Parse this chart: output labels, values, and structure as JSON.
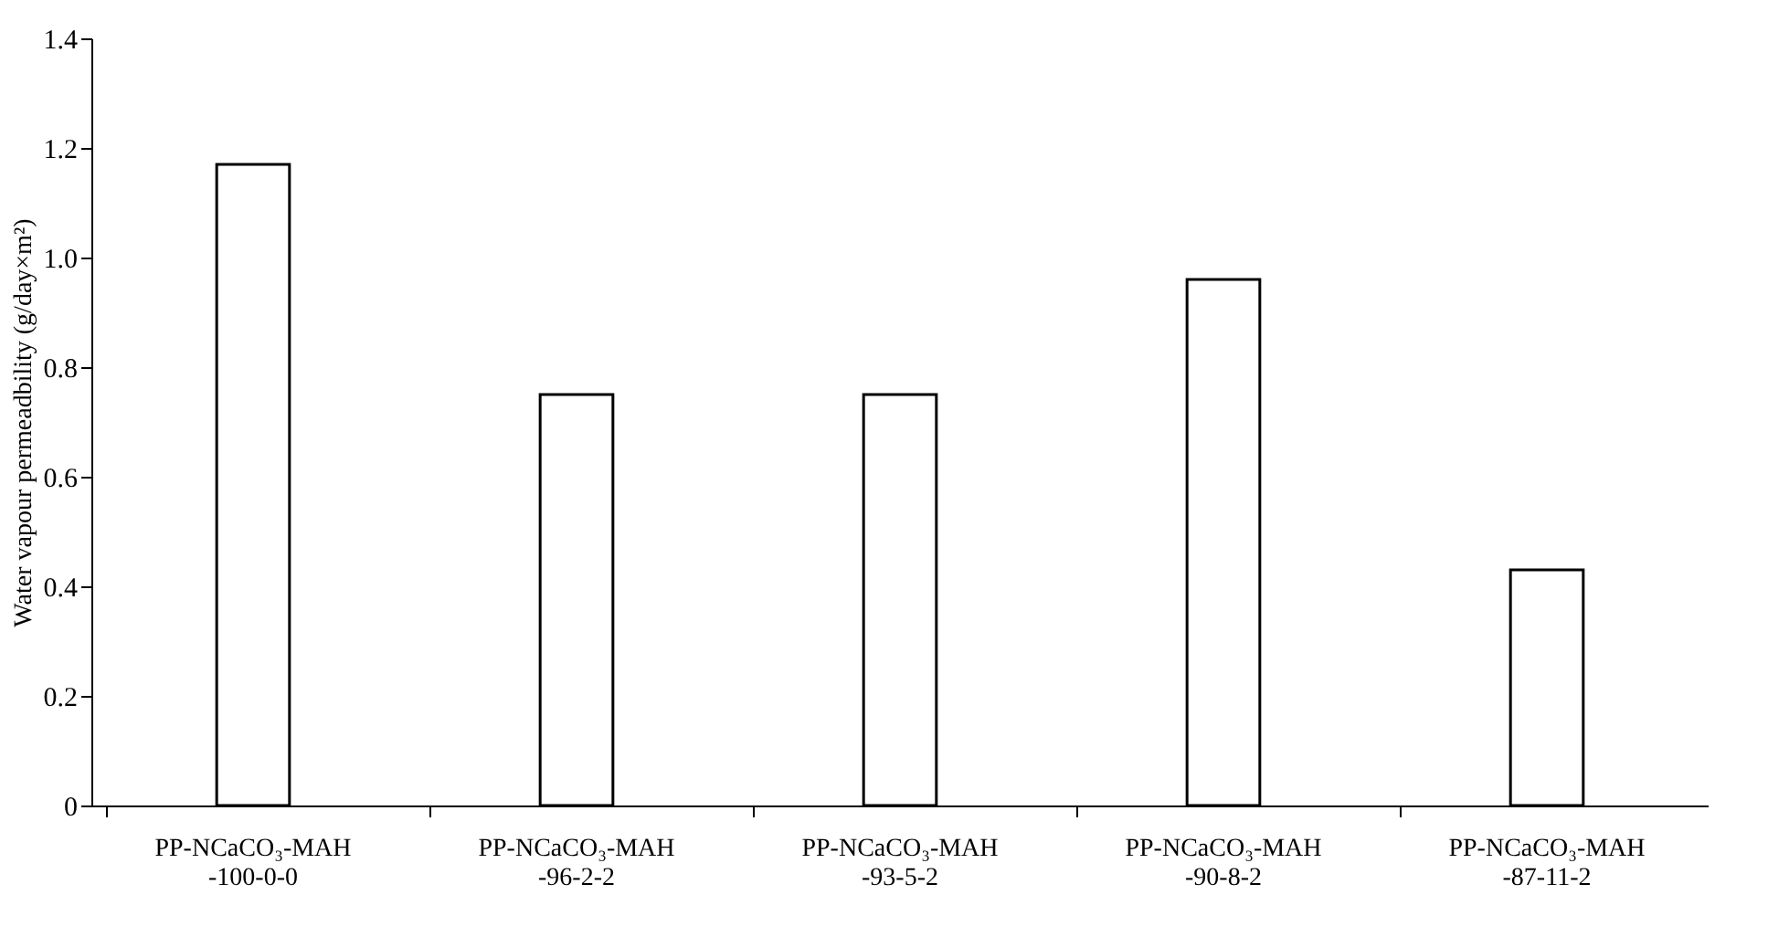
{
  "chart_data": {
    "type": "bar",
    "ylabel": "Water vapour permeadbility (g/day×m²)",
    "categories": [
      "PP-NCaCO₃-MAH\n-100-0-0",
      "PP-NCaCO₃-MAH\n-96-2-2",
      "PP-NCaCO₃-MAH\n-93-5-2",
      "PP-NCaCO₃-MAH\n-90-8-2",
      "PP-NCaCO₃-MAH\n-87-11-2"
    ],
    "values": [
      1.17,
      0.75,
      0.75,
      0.96,
      0.43
    ],
    "color": "#ffffff",
    "ylim": [
      0,
      1.4
    ],
    "yticks": [
      0,
      {
        "value": 0.2,
        "label": "0.2"
      },
      {
        "value": 0.4,
        "label": "0.4"
      },
      {
        "value": 0.6,
        "label": "0.6"
      },
      {
        "value": 0.8,
        "label": "0.8"
      },
      {
        "value": 1.0,
        "label": "1.0"
      },
      {
        "value": 1.2,
        "label": "1.2"
      },
      {
        "value": 1.4,
        "label": "1.4"
      }
    ],
    "grid": false
  }
}
